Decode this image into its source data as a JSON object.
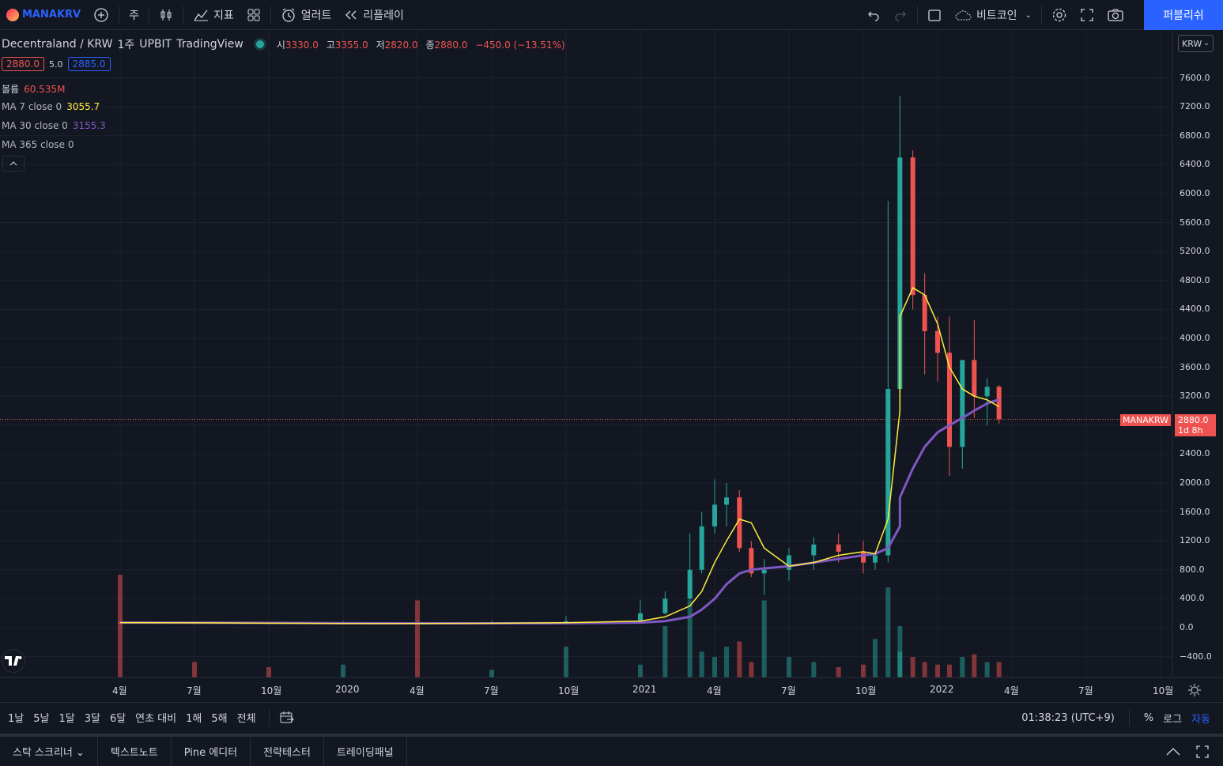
{
  "toolbar": {
    "symbol": "MANAKRV",
    "interval": "주",
    "indicators": "지표",
    "alert": "얼러트",
    "replay": "리플레이",
    "compare_symbol": "비트코인",
    "publish": "퍼블리쉬"
  },
  "legend": {
    "title": "Decentraland / KRW",
    "interval": "1주",
    "exchange": "UPBIT",
    "source": "TradingView",
    "o_label": "시",
    "o": "3330.0",
    "h_label": "고",
    "h": "3355.0",
    "l_label": "저",
    "l": "2820.0",
    "c_label": "종",
    "c": "2880.0",
    "change": "−450.0 (−13.51%)",
    "bid": "2880.0",
    "spread": "5.0",
    "ask": "2885.0",
    "volume_label": "볼륨",
    "volume": "60.535M",
    "ma7_label": "MA 7 close 0",
    "ma7": "3055.7",
    "ma30_label": "MA 30 close 0",
    "ma30": "3155.3",
    "ma365_label": "MA 365 close 0"
  },
  "price_axis": {
    "currency": "KRW",
    "ticks": [
      "7600.0",
      "7200.0",
      "6800.0",
      "6400.0",
      "6000.0",
      "5600.0",
      "5200.0",
      "4800.0",
      "4400.0",
      "4000.0",
      "3600.0",
      "3200.0",
      "2400.0",
      "2000.0",
      "1600.0",
      "1200.0",
      "800.0",
      "400.0",
      "0.0",
      "−400.0"
    ],
    "last_price": "2880.0",
    "countdown": "1d 8h",
    "symbol_tag": "MANAKRW"
  },
  "time_axis": {
    "ticks": [
      "4월",
      "7월",
      "10월",
      "2020",
      "4월",
      "7월",
      "10월",
      "2021",
      "4월",
      "7월",
      "10월",
      "2022",
      "4월",
      "7월",
      "10월"
    ]
  },
  "bottom": {
    "ranges": [
      "1날",
      "5날",
      "1달",
      "3달",
      "6달",
      "연초 대비",
      "1해",
      "5해",
      "전체"
    ],
    "clock": "01:38:23 (UTC+9)",
    "percent": "%",
    "log": "로그",
    "auto": "자동"
  },
  "panels": [
    "스탁 스크리너",
    "텍스트노트",
    "Pine 에디터",
    "전략테스터",
    "트레이딩패널"
  ],
  "colors": {
    "up": "#26a69a",
    "down": "#ef5350",
    "ma7": "#ffeb3b",
    "ma30": "#7e57c2",
    "accent": "#2962ff"
  },
  "chart_data": {
    "type": "candlestick",
    "x": [
      "2019-04",
      "2019-07",
      "2019-10",
      "2020-01",
      "2020-04",
      "2020-07",
      "2020-10",
      "2021-01",
      "2021-02",
      "2021-03",
      "2021-03",
      "2021-04",
      "2021-04",
      "2021-05",
      "2021-05",
      "2021-06",
      "2021-07",
      "2021-08",
      "2021-09",
      "2021-10",
      "2021-10",
      "2021-11",
      "2021-11",
      "2021-11",
      "2021-12",
      "2021-12",
      "2022-01",
      "2022-01",
      "2022-02",
      "2022-02",
      "2022-03",
      "2022-03"
    ],
    "open": [
      70,
      65,
      60,
      55,
      60,
      55,
      70,
      90,
      200,
      400,
      800,
      1400,
      1700,
      1800,
      1100,
      750,
      800,
      1000,
      1150,
      1050,
      900,
      1000,
      3300,
      4600,
      6500,
      4600,
      4100,
      3800,
      2500,
      3700,
      3200,
      3330
    ],
    "high": [
      90,
      80,
      75,
      90,
      100,
      95,
      160,
      380,
      500,
      1300,
      1600,
      2050,
      2000,
      1900,
      1200,
      950,
      1100,
      1250,
      1300,
      1200,
      1000,
      5900,
      7350,
      6600,
      6600,
      4900,
      4300,
      4300,
      3700,
      4250,
      3450,
      3355
    ],
    "low": [
      55,
      50,
      45,
      45,
      50,
      45,
      60,
      80,
      180,
      380,
      750,
      1300,
      1400,
      1050,
      700,
      450,
      650,
      800,
      900,
      750,
      800,
      900,
      3100,
      4500,
      4400,
      3500,
      3400,
      2100,
      2200,
      2900,
      2800,
      2820
    ],
    "close": [
      65,
      60,
      55,
      60,
      55,
      70,
      90,
      200,
      400,
      800,
      1400,
      1700,
      1800,
      1100,
      750,
      800,
      1000,
      1150,
      1050,
      900,
      1000,
      3300,
      4600,
      6500,
      4600,
      4100,
      3800,
      2500,
      3700,
      3200,
      3330,
      2880
    ],
    "volume": [
      40,
      6,
      4,
      5,
      30,
      3,
      12,
      5,
      20,
      30,
      10,
      8,
      12,
      14,
      6,
      30,
      8,
      6,
      4,
      5,
      15,
      35,
      20,
      10,
      8,
      6,
      5,
      5,
      8,
      9,
      6,
      6
    ],
    "ma7": [
      70,
      67,
      62,
      58,
      58,
      60,
      68,
      90,
      150,
      300,
      500,
      900,
      1200,
      1500,
      1450,
      1100,
      850,
      900,
      1000,
      1050,
      1020,
      1500,
      3000,
      4300,
      4700,
      4600,
      4200,
      3600,
      3300,
      3200,
      3150,
      3055.7
    ],
    "ma30": [
      70,
      68,
      65,
      62,
      60,
      60,
      62,
      70,
      90,
      150,
      250,
      400,
      600,
      750,
      800,
      820,
      850,
      900,
      950,
      1000,
      1020,
      1100,
      1400,
      1800,
      2200,
      2500,
      2700,
      2800,
      2900,
      3000,
      3100,
      3155.3
    ],
    "ylim": [
      -600,
      8000
    ]
  }
}
